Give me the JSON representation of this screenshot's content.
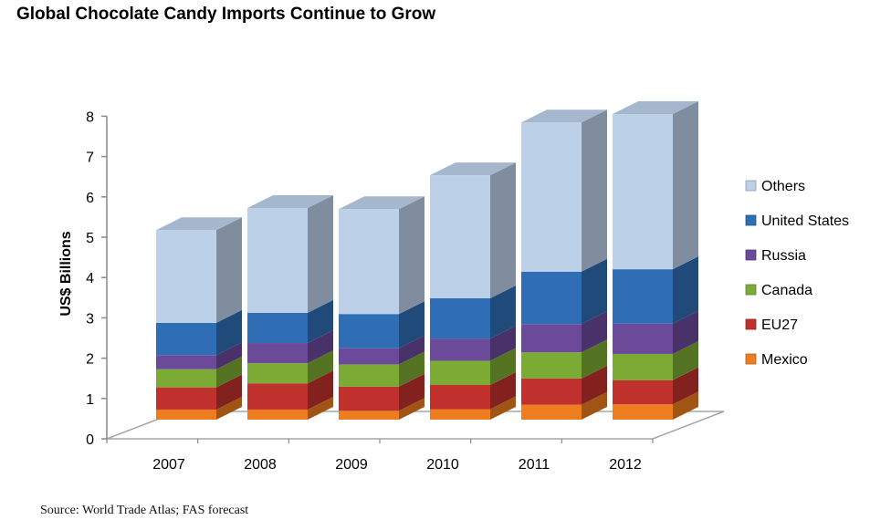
{
  "title": "Global Chocolate Candy Imports Continue to Grow",
  "source": "Source: World Trade Atlas; FAS forecast",
  "chart_data": {
    "type": "bar",
    "stacked": true,
    "three_d": true,
    "categories": [
      "2007",
      "2008",
      "2009",
      "2010",
      "2011",
      "2012"
    ],
    "ylabel": "US$ Billions",
    "ylim": [
      0,
      8
    ],
    "yticks": [
      "0",
      "1",
      "2",
      "3",
      "4",
      "5",
      "6",
      "7",
      "8"
    ],
    "legend_position": "right",
    "series": [
      {
        "name": "Mexico",
        "color": "#ed7d1f",
        "values": [
          0.25,
          0.25,
          0.22,
          0.26,
          0.37,
          0.38
        ]
      },
      {
        "name": "EU27",
        "color": "#c0302c",
        "values": [
          0.55,
          0.65,
          0.6,
          0.6,
          0.65,
          0.6
        ]
      },
      {
        "name": "Canada",
        "color": "#7cab35",
        "values": [
          0.45,
          0.5,
          0.55,
          0.6,
          0.65,
          0.65
        ]
      },
      {
        "name": "Russia",
        "color": "#6c4a9a",
        "values": [
          0.35,
          0.5,
          0.4,
          0.55,
          0.7,
          0.75
        ]
      },
      {
        "name": "United States",
        "color": "#2f6db4",
        "values": [
          0.8,
          0.75,
          0.85,
          1.0,
          1.3,
          1.35
        ]
      },
      {
        "name": "Others",
        "color": "#bcd0e8",
        "values": [
          2.3,
          2.6,
          2.6,
          3.05,
          3.7,
          3.85
        ]
      }
    ]
  }
}
